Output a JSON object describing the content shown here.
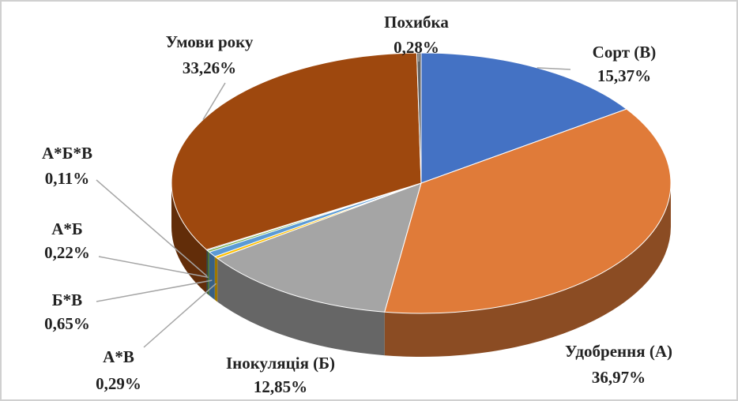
{
  "chart_data": {
    "type": "pie3d",
    "categories": [
      "Сорт (В)",
      "Удобрення (А)",
      "Інокуляція (Б)",
      "А*В",
      "Б*В",
      "А*Б",
      "А*Б*В",
      "Умови року",
      "Похибка"
    ],
    "values": [
      15.37,
      36.97,
      12.85,
      0.29,
      0.65,
      0.22,
      0.11,
      33.26,
      0.28
    ],
    "value_labels": [
      "15,37%",
      "36,97%",
      "12,85%",
      "0,29%",
      "0,65%",
      "0,22%",
      "0,11%",
      "33,26%",
      "0,28%"
    ],
    "colors": [
      "#4472c4",
      "#e07b39",
      "#a5a5a5",
      "#ffc000",
      "#5b9bd5",
      "#70ad47",
      "#264478",
      "#9e480e",
      "#636363"
    ]
  }
}
